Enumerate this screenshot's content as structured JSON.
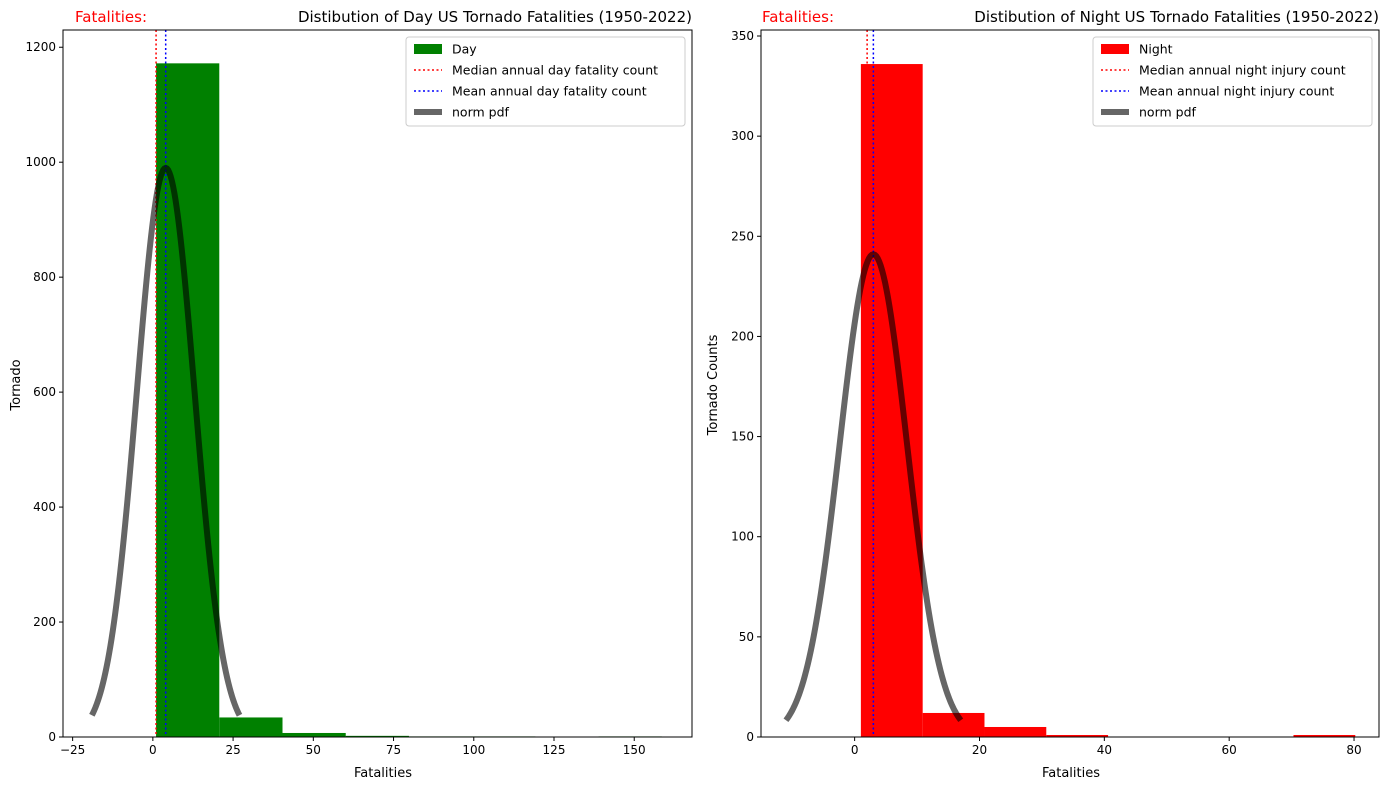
{
  "chart_data": [
    {
      "type": "bar",
      "title": "Distibution of Day US Tornado Fatalities (1950-2022)",
      "title_left": "Fatalities:",
      "xlabel": "Fatalities",
      "ylabel": "Tornado",
      "xlim": [
        -28,
        168
      ],
      "ylim": [
        0,
        1230
      ],
      "xticks": [
        -25,
        0,
        25,
        50,
        75,
        100,
        125,
        150
      ],
      "yticks": [
        0,
        200,
        400,
        600,
        800,
        1000,
        1200
      ],
      "bins": [
        {
          "x0": 1,
          "x1": 20.7,
          "value": 1172
        },
        {
          "x0": 20.7,
          "x1": 40.4,
          "value": 34
        },
        {
          "x0": 40.4,
          "x1": 60.1,
          "value": 7
        },
        {
          "x0": 60.1,
          "x1": 79.8,
          "value": 2
        },
        {
          "x0": 79.8,
          "x1": 99.5,
          "value": 1
        },
        {
          "x0": 99.5,
          "x1": 119.2,
          "value": 1
        },
        {
          "x0": 119.2,
          "x1": 138.9,
          "value": 0
        },
        {
          "x0": 138.9,
          "x1": 158.6,
          "value": 1
        }
      ],
      "median_line": 1,
      "mean_line": 4,
      "norm_pdf": {
        "mean": 4,
        "std": 9.0,
        "peak": 990,
        "x_range": [
          -19,
          27
        ]
      },
      "legend": {
        "placement": "top-right",
        "entries": [
          {
            "label": "Day",
            "kind": "patch",
            "color": "#008000"
          },
          {
            "label": "Median annual day fatality count",
            "kind": "dotted",
            "color": "#ff0000"
          },
          {
            "label": "Mean annual day fatality count",
            "kind": "dotted",
            "color": "#0000ff"
          },
          {
            "label": "norm pdf",
            "kind": "thick",
            "color": "#000000"
          }
        ]
      },
      "colors": {
        "bars": "#008000",
        "median": "#ff0000",
        "mean": "#0000ff",
        "pdf": "#000000"
      }
    },
    {
      "type": "bar",
      "title": "Distibution of Night US Tornado Fatalities (1950-2022)",
      "title_left": "Fatalities:",
      "xlabel": "Fatalities",
      "ylabel": "Tornado Counts",
      "xlim": [
        -15,
        84
      ],
      "ylim": [
        0,
        353
      ],
      "xticks": [
        0,
        20,
        40,
        60,
        80
      ],
      "yticks": [
        0,
        50,
        100,
        150,
        200,
        250,
        300,
        350
      ],
      "bins": [
        {
          "x0": 1,
          "x1": 10.9,
          "value": 336
        },
        {
          "x0": 10.9,
          "x1": 20.8,
          "value": 12
        },
        {
          "x0": 20.8,
          "x1": 30.7,
          "value": 5
        },
        {
          "x0": 30.7,
          "x1": 40.6,
          "value": 1
        },
        {
          "x0": 40.6,
          "x1": 50.5,
          "value": 0
        },
        {
          "x0": 50.5,
          "x1": 60.4,
          "value": 0
        },
        {
          "x0": 60.4,
          "x1": 70.3,
          "value": 0
        },
        {
          "x0": 70.3,
          "x1": 80.2,
          "value": 1
        }
      ],
      "median_line": 2,
      "mean_line": 3,
      "norm_pdf": {
        "mean": 3,
        "std": 5.4,
        "peak": 241,
        "x_range": [
          -11,
          17
        ]
      },
      "legend": {
        "placement": "top-right",
        "entries": [
          {
            "label": "Night",
            "kind": "patch",
            "color": "#ff0000"
          },
          {
            "label": "Median annual night injury count",
            "kind": "dotted",
            "color": "#ff0000"
          },
          {
            "label": "Mean annual night injury count",
            "kind": "dotted",
            "color": "#0000ff"
          },
          {
            "label": "norm pdf",
            "kind": "thick",
            "color": "#000000"
          }
        ]
      },
      "colors": {
        "bars": "#ff0000",
        "median": "#ff0000",
        "mean": "#0000ff",
        "pdf": "#000000"
      }
    }
  ]
}
